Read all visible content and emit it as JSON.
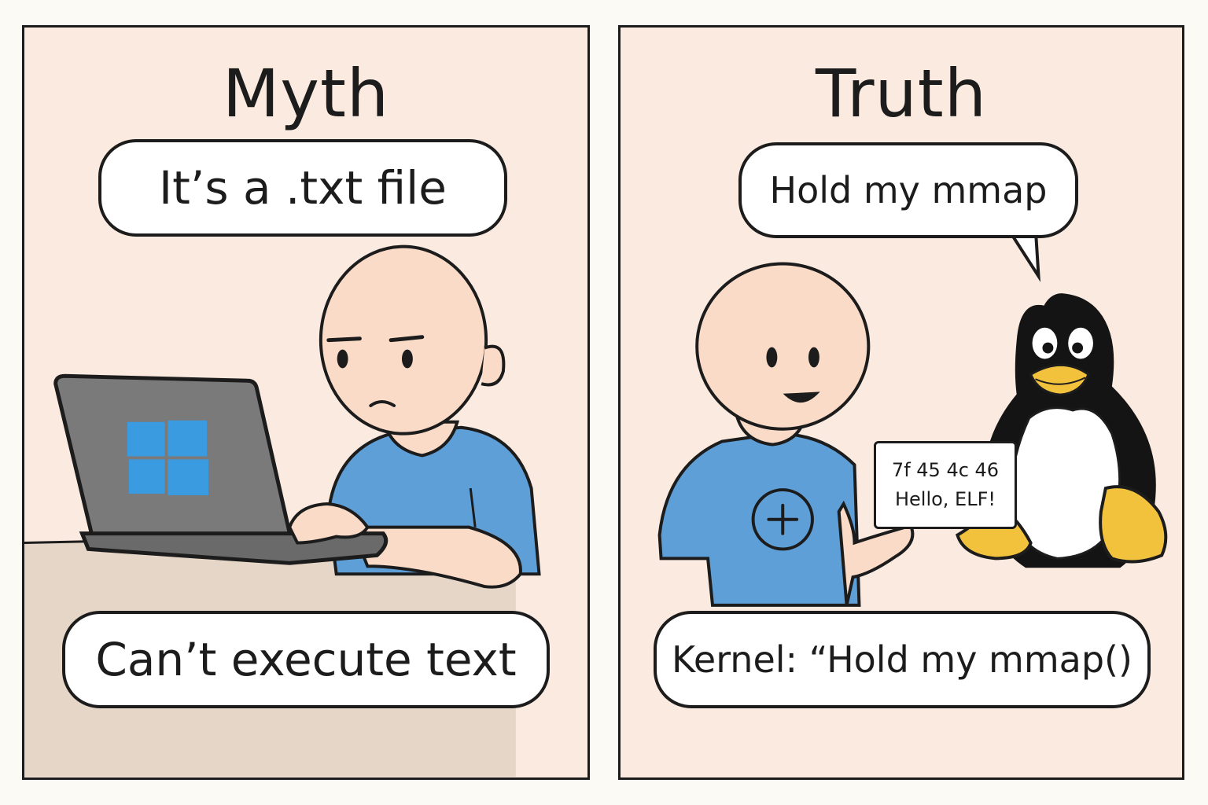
{
  "myth": {
    "title": "Myth",
    "speech": "It’s a .txt file",
    "caption": "Can’t execute text"
  },
  "truth": {
    "title": "Truth",
    "speech": "Hold my mmap",
    "caption": "Kernel: “Hold my mmap()",
    "card_line1": "7f 45 4c 46",
    "card_line2": "Hello, ELF!"
  },
  "colors": {
    "panel_bg": "#fbeadf",
    "ink": "#1c1c1c",
    "skin": "#fadbc8",
    "shirt": "#5f9fd8",
    "laptop": "#7a7a7a",
    "windows_logo": "#3b9be0",
    "desk": "#e5d6c8",
    "penguin_beak_feet": "#f3c23c"
  },
  "icons": [
    "windows-logo-icon",
    "plus-circle-icon",
    "penguin-tux-icon"
  ]
}
